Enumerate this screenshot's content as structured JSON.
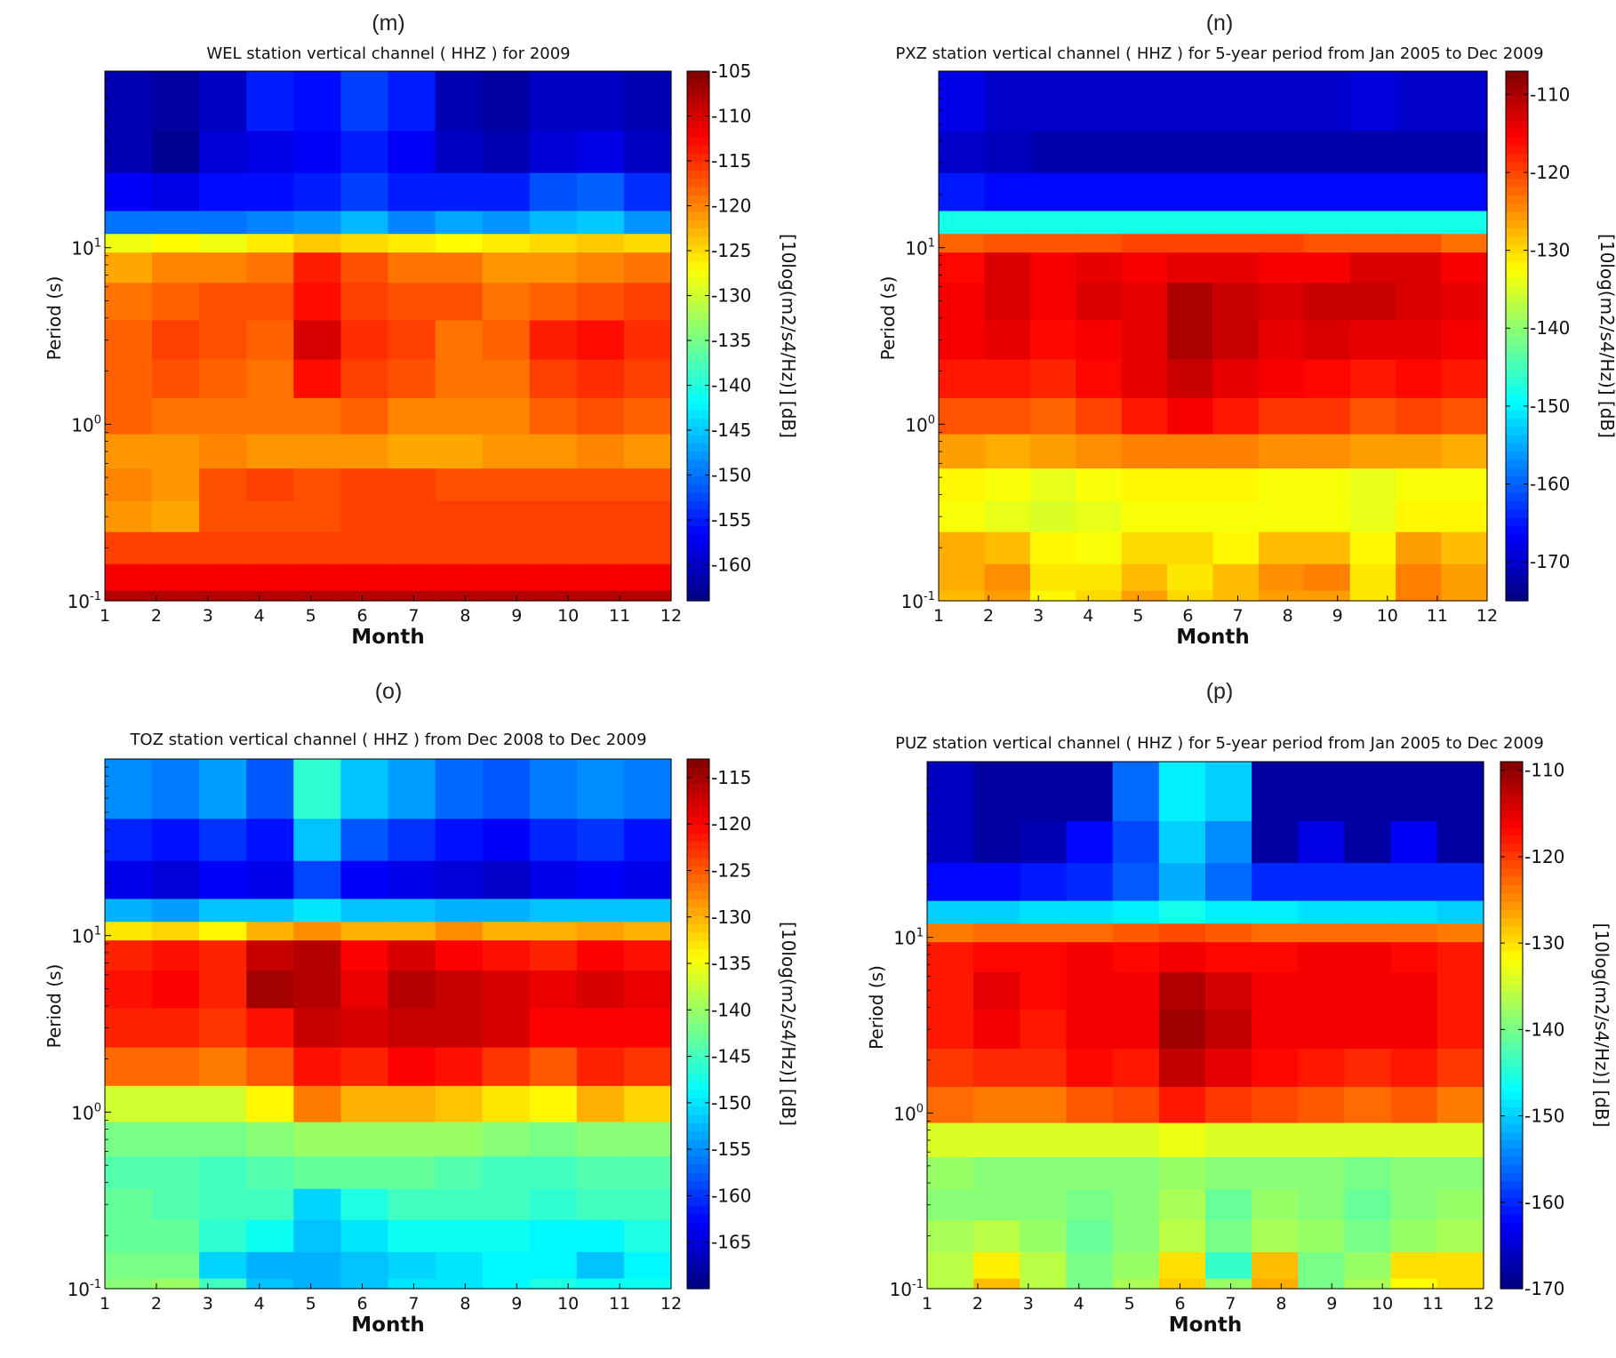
{
  "colormap": "jet",
  "chart_data": [
    {
      "type": "heatmap",
      "panel": "(m)",
      "title": "WEL station vertical channel ( HHZ ) for 2009",
      "xlabel": "Month",
      "ylabel": "Period (s)",
      "colorbar_label": "[10log(m2/s4/Hz)] [dB]",
      "x": [
        1,
        2,
        3,
        4,
        5,
        6,
        7,
        8,
        9,
        10,
        11,
        12
      ],
      "y_scale": "log",
      "y_ticks": [
        {
          "base": "10",
          "exp": "-1"
        },
        {
          "base": "10",
          "exp": "0"
        },
        {
          "base": "10",
          "exp": "1"
        }
      ],
      "y_bands_period_s": [
        60,
        35,
        20,
        13,
        11,
        8,
        5,
        3,
        1.8,
        1.1,
        0.7,
        0.45,
        0.3,
        0.2,
        0.13,
        0.1
      ],
      "clim": [
        -164,
        -105
      ],
      "colorbar_ticks": [
        -105,
        -110,
        -115,
        -120,
        -125,
        -130,
        -135,
        -140,
        -145,
        -150,
        -155,
        -160
      ],
      "values_dB": [
        [
          -161,
          -162,
          -160,
          -155,
          -156,
          -153,
          -155,
          -161,
          -162,
          -160,
          -160,
          -161
        ],
        [
          -161,
          -163,
          -159,
          -158,
          -157,
          -155,
          -157,
          -160,
          -161,
          -159,
          -158,
          -160
        ],
        [
          -157,
          -158,
          -156,
          -156,
          -155,
          -153,
          -155,
          -155,
          -155,
          -152,
          -151,
          -154
        ],
        [
          -150,
          -150,
          -150,
          -149,
          -148,
          -146,
          -149,
          -147,
          -148,
          -146,
          -145,
          -148
        ],
        [
          -128,
          -127,
          -128,
          -126,
          -124,
          -125,
          -126,
          -127,
          -126,
          -125,
          -124,
          -125
        ],
        [
          -122,
          -120,
          -120,
          -119,
          -114,
          -117,
          -119,
          -119,
          -121,
          -121,
          -120,
          -119
        ],
        [
          -119,
          -118,
          -117,
          -117,
          -113,
          -116,
          -117,
          -117,
          -119,
          -118,
          -117,
          -116
        ],
        [
          -118,
          -116,
          -117,
          -118,
          -110,
          -115,
          -116,
          -119,
          -118,
          -114,
          -113,
          -115
        ],
        [
          -118,
          -117,
          -118,
          -119,
          -113,
          -116,
          -117,
          -119,
          -119,
          -116,
          -115,
          -116
        ],
        [
          -118,
          -119,
          -119,
          -119,
          -119,
          -118,
          -120,
          -120,
          -120,
          -118,
          -117,
          -118
        ],
        [
          -121,
          -121,
          -120,
          -121,
          -121,
          -121,
          -122,
          -122,
          -121,
          -121,
          -120,
          -121
        ],
        [
          -120,
          -121,
          -117,
          -116,
          -117,
          -116,
          -116,
          -117,
          -117,
          -117,
          -117,
          -117
        ],
        [
          -121,
          -122,
          -117,
          -117,
          -117,
          -116,
          -116,
          -116,
          -116,
          -116,
          -116,
          -116
        ],
        [
          -116,
          -116,
          -116,
          -116,
          -116,
          -116,
          -116,
          -116,
          -116,
          -116,
          -116,
          -116
        ],
        [
          -112,
          -112,
          -112,
          -112,
          -112,
          -112,
          -112,
          -112,
          -112,
          -112,
          -112,
          -112
        ],
        [
          -108,
          -108,
          -108,
          -108,
          -108,
          -108,
          -108,
          -108,
          -108,
          -108,
          -108,
          -108
        ]
      ]
    },
    {
      "type": "heatmap",
      "panel": "(n)",
      "title": "PXZ station vertical channel ( HHZ ) for 5-year period from Jan 2005 to Dec 2009",
      "xlabel": "Month",
      "ylabel": "Period (s)",
      "colorbar_label": "[10log(m2/s4/Hz)] [dB]",
      "x": [
        1,
        2,
        3,
        4,
        5,
        6,
        7,
        8,
        9,
        10,
        11,
        12
      ],
      "y_scale": "log",
      "y_ticks": [
        {
          "base": "10",
          "exp": "-1"
        },
        {
          "base": "10",
          "exp": "0"
        },
        {
          "base": "10",
          "exp": "1"
        }
      ],
      "y_bands_period_s": [
        60,
        35,
        20,
        13,
        11,
        8,
        5,
        3,
        1.8,
        1.1,
        0.7,
        0.45,
        0.3,
        0.2,
        0.13,
        0.1
      ],
      "clim": [
        -175,
        -107
      ],
      "colorbar_ticks": [
        -110,
        -120,
        -130,
        -140,
        -150,
        -160,
        -170
      ],
      "values_dB": [
        [
          -168,
          -170,
          -170,
          -170,
          -170,
          -170,
          -170,
          -170,
          -170,
          -169,
          -170,
          -170
        ],
        [
          -170,
          -171,
          -172,
          -172,
          -172,
          -172,
          -172,
          -172,
          -172,
          -172,
          -172,
          -172
        ],
        [
          -165,
          -166,
          -166,
          -166,
          -166,
          -166,
          -166,
          -166,
          -166,
          -166,
          -166,
          -166
        ],
        [
          -148,
          -148,
          -148,
          -148,
          -148,
          -148,
          -148,
          -148,
          -148,
          -148,
          -148,
          -148
        ],
        [
          -122,
          -121,
          -121,
          -121,
          -120,
          -120,
          -120,
          -120,
          -121,
          -121,
          -121,
          -123
        ],
        [
          -116,
          -113,
          -115,
          -114,
          -115,
          -114,
          -114,
          -115,
          -115,
          -113,
          -113,
          -115
        ],
        [
          -115,
          -113,
          -115,
          -113,
          -114,
          -110,
          -112,
          -113,
          -112,
          -112,
          -113,
          -114
        ],
        [
          -115,
          -114,
          -116,
          -115,
          -114,
          -110,
          -112,
          -114,
          -113,
          -114,
          -114,
          -115
        ],
        [
          -117,
          -117,
          -118,
          -116,
          -114,
          -112,
          -114,
          -115,
          -116,
          -117,
          -116,
          -117
        ],
        [
          -121,
          -121,
          -122,
          -120,
          -117,
          -115,
          -117,
          -119,
          -119,
          -121,
          -120,
          -121
        ],
        [
          -126,
          -127,
          -126,
          -125,
          -124,
          -124,
          -124,
          -125,
          -125,
          -126,
          -126,
          -127
        ],
        [
          -132,
          -133,
          -134,
          -133,
          -132,
          -132,
          -132,
          -133,
          -133,
          -134,
          -133,
          -133
        ],
        [
          -133,
          -134,
          -135,
          -134,
          -133,
          -133,
          -133,
          -133,
          -133,
          -134,
          -132,
          -132
        ],
        [
          -127,
          -128,
          -132,
          -133,
          -130,
          -130,
          -132,
          -128,
          -128,
          -132,
          -126,
          -128
        ],
        [
          -127,
          -125,
          -131,
          -131,
          -128,
          -131,
          -128,
          -125,
          -124,
          -131,
          -124,
          -126
        ],
        [
          -128,
          -126,
          -132,
          -130,
          -126,
          -130,
          -128,
          -126,
          -126,
          -131,
          -124,
          -126
        ]
      ]
    },
    {
      "type": "heatmap",
      "panel": "(o)",
      "title": "TOZ station vertical channel ( HHZ ) from Dec 2008 to Dec 2009",
      "xlabel": "Month",
      "ylabel": "Period (s)",
      "colorbar_label": "[10log(m2/s4/Hz)] [dB]",
      "x": [
        1,
        2,
        3,
        4,
        5,
        6,
        7,
        8,
        9,
        10,
        11,
        12
      ],
      "y_scale": "log",
      "y_ticks": [
        {
          "base": "10",
          "exp": "-1"
        },
        {
          "base": "10",
          "exp": "0"
        },
        {
          "base": "10",
          "exp": "1"
        }
      ],
      "y_bands_period_s": [
        60,
        35,
        20,
        13,
        11,
        8,
        5,
        3,
        1.8,
        1.1,
        0.7,
        0.45,
        0.3,
        0.2,
        0.13,
        0.1
      ],
      "clim": [
        -170,
        -113
      ],
      "colorbar_ticks": [
        -115,
        -120,
        -125,
        -130,
        -135,
        -140,
        -145,
        -150,
        -155,
        -160,
        -165
      ],
      "values_dB": [
        [
          -155,
          -156,
          -154,
          -158,
          -146,
          -152,
          -154,
          -157,
          -158,
          -156,
          -155,
          -156
        ],
        [
          -161,
          -162,
          -160,
          -162,
          -152,
          -158,
          -160,
          -162,
          -163,
          -161,
          -160,
          -162
        ],
        [
          -164,
          -165,
          -163,
          -164,
          -159,
          -163,
          -164,
          -165,
          -166,
          -164,
          -163,
          -164
        ],
        [
          -153,
          -154,
          -152,
          -152,
          -150,
          -152,
          -152,
          -153,
          -153,
          -152,
          -152,
          -152
        ],
        [
          -133,
          -132,
          -134,
          -130,
          -128,
          -130,
          -130,
          -128,
          -130,
          -130,
          -129,
          -130
        ],
        [
          -122,
          -121,
          -122,
          -117,
          -116,
          -120,
          -118,
          -120,
          -121,
          -122,
          -120,
          -121
        ],
        [
          -121,
          -120,
          -122,
          -115,
          -116,
          -119,
          -116,
          -117,
          -118,
          -119,
          -118,
          -119
        ],
        [
          -122,
          -122,
          -123,
          -121,
          -117,
          -118,
          -117,
          -117,
          -118,
          -120,
          -120,
          -120
        ],
        [
          -126,
          -126,
          -127,
          -125,
          -121,
          -122,
          -120,
          -121,
          -123,
          -125,
          -122,
          -123
        ],
        [
          -137,
          -137,
          -137,
          -134,
          -127,
          -130,
          -130,
          -131,
          -133,
          -134,
          -130,
          -132
        ],
        [
          -142,
          -142,
          -142,
          -141,
          -140,
          -140,
          -140,
          -140,
          -141,
          -142,
          -141,
          -141
        ],
        [
          -144,
          -144,
          -145,
          -144,
          -143,
          -143,
          -143,
          -144,
          -145,
          -145,
          -144,
          -144
        ],
        [
          -143,
          -144,
          -145,
          -145,
          -151,
          -147,
          -145,
          -145,
          -145,
          -146,
          -145,
          -145
        ],
        [
          -143,
          -143,
          -146,
          -148,
          -152,
          -150,
          -148,
          -148,
          -148,
          -149,
          -149,
          -147
        ],
        [
          -142,
          -142,
          -151,
          -153,
          -153,
          -152,
          -151,
          -150,
          -149,
          -149,
          -152,
          -149
        ],
        [
          -141,
          -140,
          -145,
          -152,
          -153,
          -152,
          -150,
          -150,
          -149,
          -147,
          -148,
          -148
        ]
      ]
    },
    {
      "type": "heatmap",
      "panel": "(p)",
      "title": "PUZ station vertical channel ( HHZ ) for 5-year period from Jan 2005 to Dec 2009",
      "xlabel": "Month",
      "ylabel": "Period (s)",
      "colorbar_label": "[10log(m2/s4/Hz)] [dB]",
      "x": [
        1,
        2,
        3,
        4,
        5,
        6,
        7,
        8,
        9,
        10,
        11,
        12
      ],
      "y_scale": "log",
      "y_ticks": [
        {
          "base": "10",
          "exp": "-1"
        },
        {
          "base": "10",
          "exp": "0"
        },
        {
          "base": "10",
          "exp": "1"
        }
      ],
      "y_bands_period_s": [
        60,
        35,
        20,
        13,
        11,
        8,
        5,
        3,
        1.8,
        1.1,
        0.7,
        0.45,
        0.3,
        0.2,
        0.13,
        0.1
      ],
      "clim": [
        -170,
        -109
      ],
      "colorbar_ticks": [
        -110,
        -120,
        -130,
        -140,
        -150,
        -160,
        -170
      ],
      "values_dB": [
        [
          -166,
          -168,
          -168,
          -168,
          -156,
          -148,
          -150,
          -168,
          -168,
          -168,
          -168,
          -168
        ],
        [
          -166,
          -168,
          -167,
          -162,
          -158,
          -150,
          -154,
          -168,
          -164,
          -168,
          -163,
          -168
        ],
        [
          -162,
          -162,
          -161,
          -160,
          -157,
          -152,
          -156,
          -160,
          -160,
          -160,
          -160,
          -160
        ],
        [
          -150,
          -150,
          -149,
          -149,
          -148,
          -146,
          -148,
          -148,
          -149,
          -149,
          -149,
          -150
        ],
        [
          -124,
          -123,
          -123,
          -123,
          -122,
          -121,
          -122,
          -123,
          -123,
          -123,
          -123,
          -124
        ],
        [
          -118,
          -117,
          -117,
          -116,
          -117,
          -116,
          -117,
          -117,
          -116,
          -116,
          -117,
          -118
        ],
        [
          -118,
          -115,
          -117,
          -116,
          -116,
          -112,
          -114,
          -116,
          -116,
          -116,
          -116,
          -118
        ],
        [
          -118,
          -116,
          -118,
          -116,
          -116,
          -111,
          -113,
          -116,
          -116,
          -116,
          -116,
          -118
        ],
        [
          -120,
          -119,
          -119,
          -117,
          -118,
          -113,
          -115,
          -117,
          -118,
          -119,
          -118,
          -120
        ],
        [
          -123,
          -124,
          -124,
          -122,
          -121,
          -118,
          -120,
          -121,
          -122,
          -123,
          -122,
          -124
        ],
        [
          -134,
          -134,
          -134,
          -134,
          -134,
          -133,
          -134,
          -134,
          -134,
          -134,
          -134,
          -134
        ],
        [
          -138,
          -139,
          -139,
          -139,
          -139,
          -138,
          -139,
          -139,
          -139,
          -140,
          -139,
          -139
        ],
        [
          -139,
          -139,
          -139,
          -140,
          -139,
          -137,
          -141,
          -138,
          -139,
          -141,
          -139,
          -138
        ],
        [
          -137,
          -136,
          -138,
          -141,
          -139,
          -136,
          -140,
          -137,
          -138,
          -140,
          -138,
          -137
        ],
        [
          -136,
          -131,
          -136,
          -140,
          -138,
          -130,
          -144,
          -128,
          -140,
          -138,
          -130,
          -130
        ],
        [
          -136,
          -128,
          -136,
          -140,
          -137,
          -129,
          -138,
          -127,
          -140,
          -137,
          -132,
          -130
        ]
      ]
    }
  ]
}
